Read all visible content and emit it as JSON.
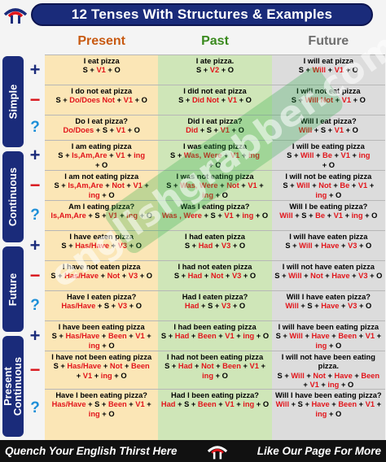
{
  "header": {
    "title": "12 Tenses With Structures & Examples"
  },
  "columns": {
    "present": "Present",
    "past": "Past",
    "future": "Future"
  },
  "groups": {
    "simple": "Simple",
    "continuous": "Continuous",
    "future": "Future",
    "present_continuous_line1": "Present",
    "present_continuous_line2": "Continuous"
  },
  "rows": [
    {
      "present": [
        "I eat pizza",
        "S + V1 + O"
      ],
      "past": [
        "I ate pizza.",
        "S + V2 + O"
      ],
      "future": [
        "I will eat pizza",
        "S + Will + V1 + O"
      ]
    },
    {
      "present": [
        "I do not eat pizza",
        "S + Do/Does Not + V1 + O"
      ],
      "past": [
        "I did not eat pizza",
        "S + Did Not + V1 + O"
      ],
      "future": [
        "I will not eat pizza",
        "S + Will Not + V1 + O"
      ]
    },
    {
      "present": [
        "Do I eat pizza?",
        "Do/Does + S + V1 + O"
      ],
      "past": [
        "Did I eat pizza?",
        "Did + S + V1 + O"
      ],
      "future": [
        "Will I eat pizza?",
        "Will + S + V1 + O"
      ]
    },
    {
      "present": [
        "I am eating pizza",
        "S + Is,Am,Are + V1 + ing",
        "+ O"
      ],
      "past": [
        "I was eating pizza",
        "S + Was, Were + V1 + ing",
        "+ O"
      ],
      "future": [
        "I will be eating pizza",
        "S + Will + Be + V1 + ing",
        "+ O"
      ]
    },
    {
      "present": [
        "I am not eating pizza",
        "S + Is,Am,Are + Not + V1 +",
        "ing + O"
      ],
      "past": [
        "I was not eating pizza",
        "S + Was, Were + Not + V1 +",
        "ing + O"
      ],
      "future": [
        "I will not be eating pizza",
        "S + Will + Not + Be + V1 +",
        "ing + O"
      ]
    },
    {
      "present": [
        "Am I eating pizza?",
        "Is,Am,Are + S + V1 + ing + O"
      ],
      "past": [
        "Was I eating pizza?",
        "Was , Were + S + V1 + ing + O"
      ],
      "future": [
        "Will I be eating pizza?",
        "Will + S + Be + V1 + ing + O"
      ]
    },
    {
      "present": [
        "I have eaten pizza",
        "S + Has/Have + V3 + O"
      ],
      "past": [
        "I had eaten pizza",
        "S + Had + V3 + O"
      ],
      "future": [
        "I will have eaten pizza",
        "S + Will + Have + V3 + O"
      ]
    },
    {
      "present": [
        "I have not eaten pizza",
        "S + Has/Have + Not + V3 + O"
      ],
      "past": [
        "I had not eaten pizza",
        "S + Had + Not + V3 + O"
      ],
      "future": [
        "I will not have eaten pizza",
        "S + Will + Not + Have + V3 + O"
      ]
    },
    {
      "present": [
        "Have I eaten pizza?",
        "Has/Have + S + V3 + O"
      ],
      "past": [
        "Had I eaten pizza?",
        "Had + S + V3 + O"
      ],
      "future": [
        "Will I have eaten pizza?",
        "Will + S + Have + V3 + O"
      ]
    },
    {
      "present": [
        "I have been eating pizza",
        "S + Has/Have + Been + V1 +",
        "ing + O"
      ],
      "past": [
        "I had been eating pizza",
        "S + Had + Been + V1 + ing + O"
      ],
      "future": [
        "I will have been eating pizza",
        "S + Will + Have + Been + V1 +",
        "ing + O"
      ]
    },
    {
      "present": [
        "I have not been eating pizza",
        "S + Has/Have + Not + Been",
        "+ V1 + ing + O"
      ],
      "past": [
        "I had not been eating pizza",
        "S + Had + Not + Been + V1 +",
        "ing + O"
      ],
      "future": [
        "I will not have been eating",
        "pizza.",
        "S + Will + Not + Have + Been",
        "+ V1 + ing + O"
      ]
    },
    {
      "present": [
        "Have I been eating pizza?",
        "Has/Have + S + Been + V1 +",
        "ing + O"
      ],
      "past": [
        "Had I been eating pizza?",
        "Had + S + Been + V1 + ing + O"
      ],
      "future": [
        "Will I have been eating pizza?",
        "Will + S + Have + Been + V1 +",
        "ing + O"
      ]
    }
  ],
  "watermark": "englishgrabber.com",
  "footer": {
    "left": "Quench Your English Thirst Here",
    "right": "Like Our Page For More"
  },
  "colors": {
    "title_bg": "#1a2b7a",
    "present_bg": "#fbe6b6",
    "past_bg": "#cfe6b8",
    "future_bg": "#dcdcdc",
    "red": "#e2151b",
    "footer_bg": "#111111"
  }
}
